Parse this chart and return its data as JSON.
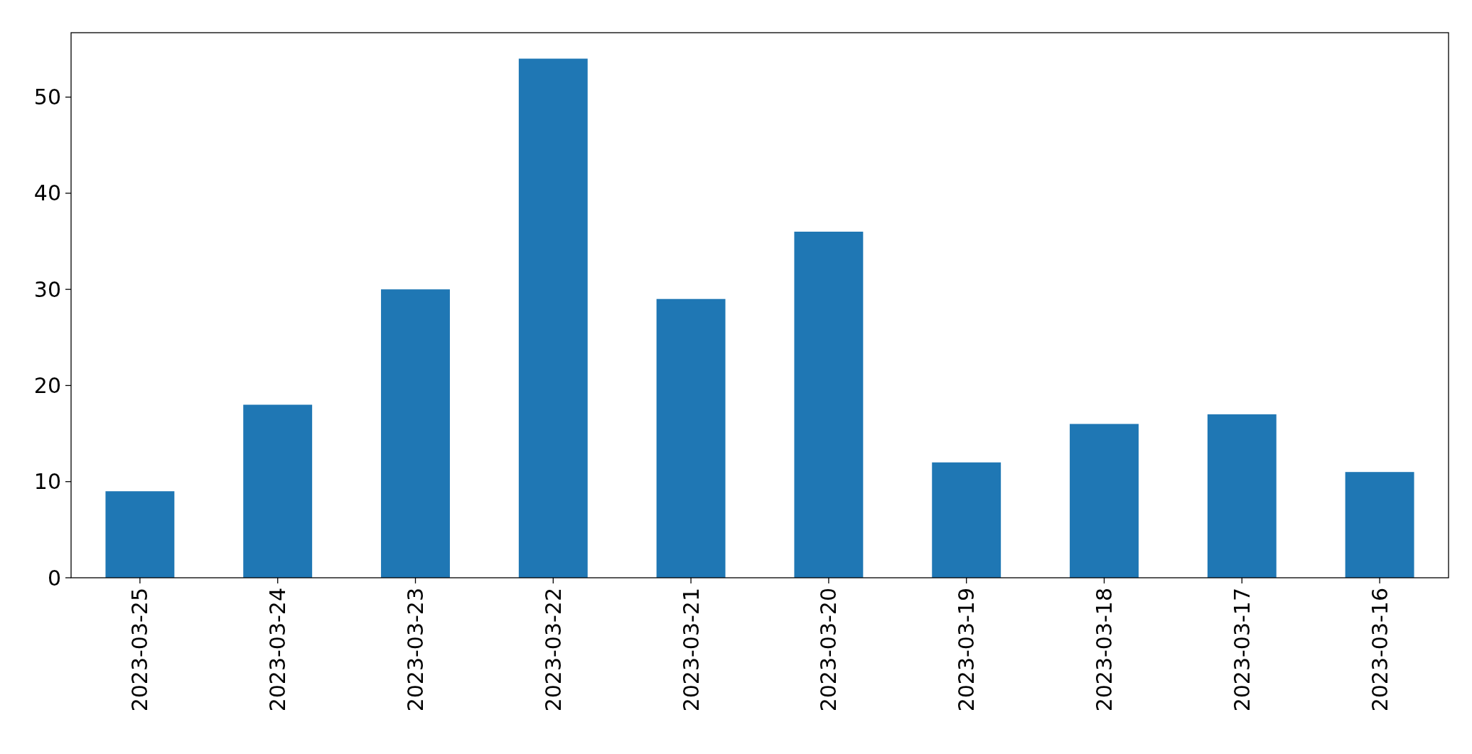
{
  "chart_data": {
    "type": "bar",
    "categories": [
      "2023-03-25",
      "2023-03-24",
      "2023-03-23",
      "2023-03-22",
      "2023-03-21",
      "2023-03-20",
      "2023-03-19",
      "2023-03-18",
      "2023-03-17",
      "2023-03-16"
    ],
    "values": [
      9,
      18,
      30,
      54,
      29,
      36,
      12,
      16,
      17,
      11
    ],
    "color": "#1f77b4",
    "ylim": [
      0,
      56.7
    ],
    "yticks": [
      0,
      10,
      20,
      30,
      40,
      50
    ],
    "grid": false
  }
}
